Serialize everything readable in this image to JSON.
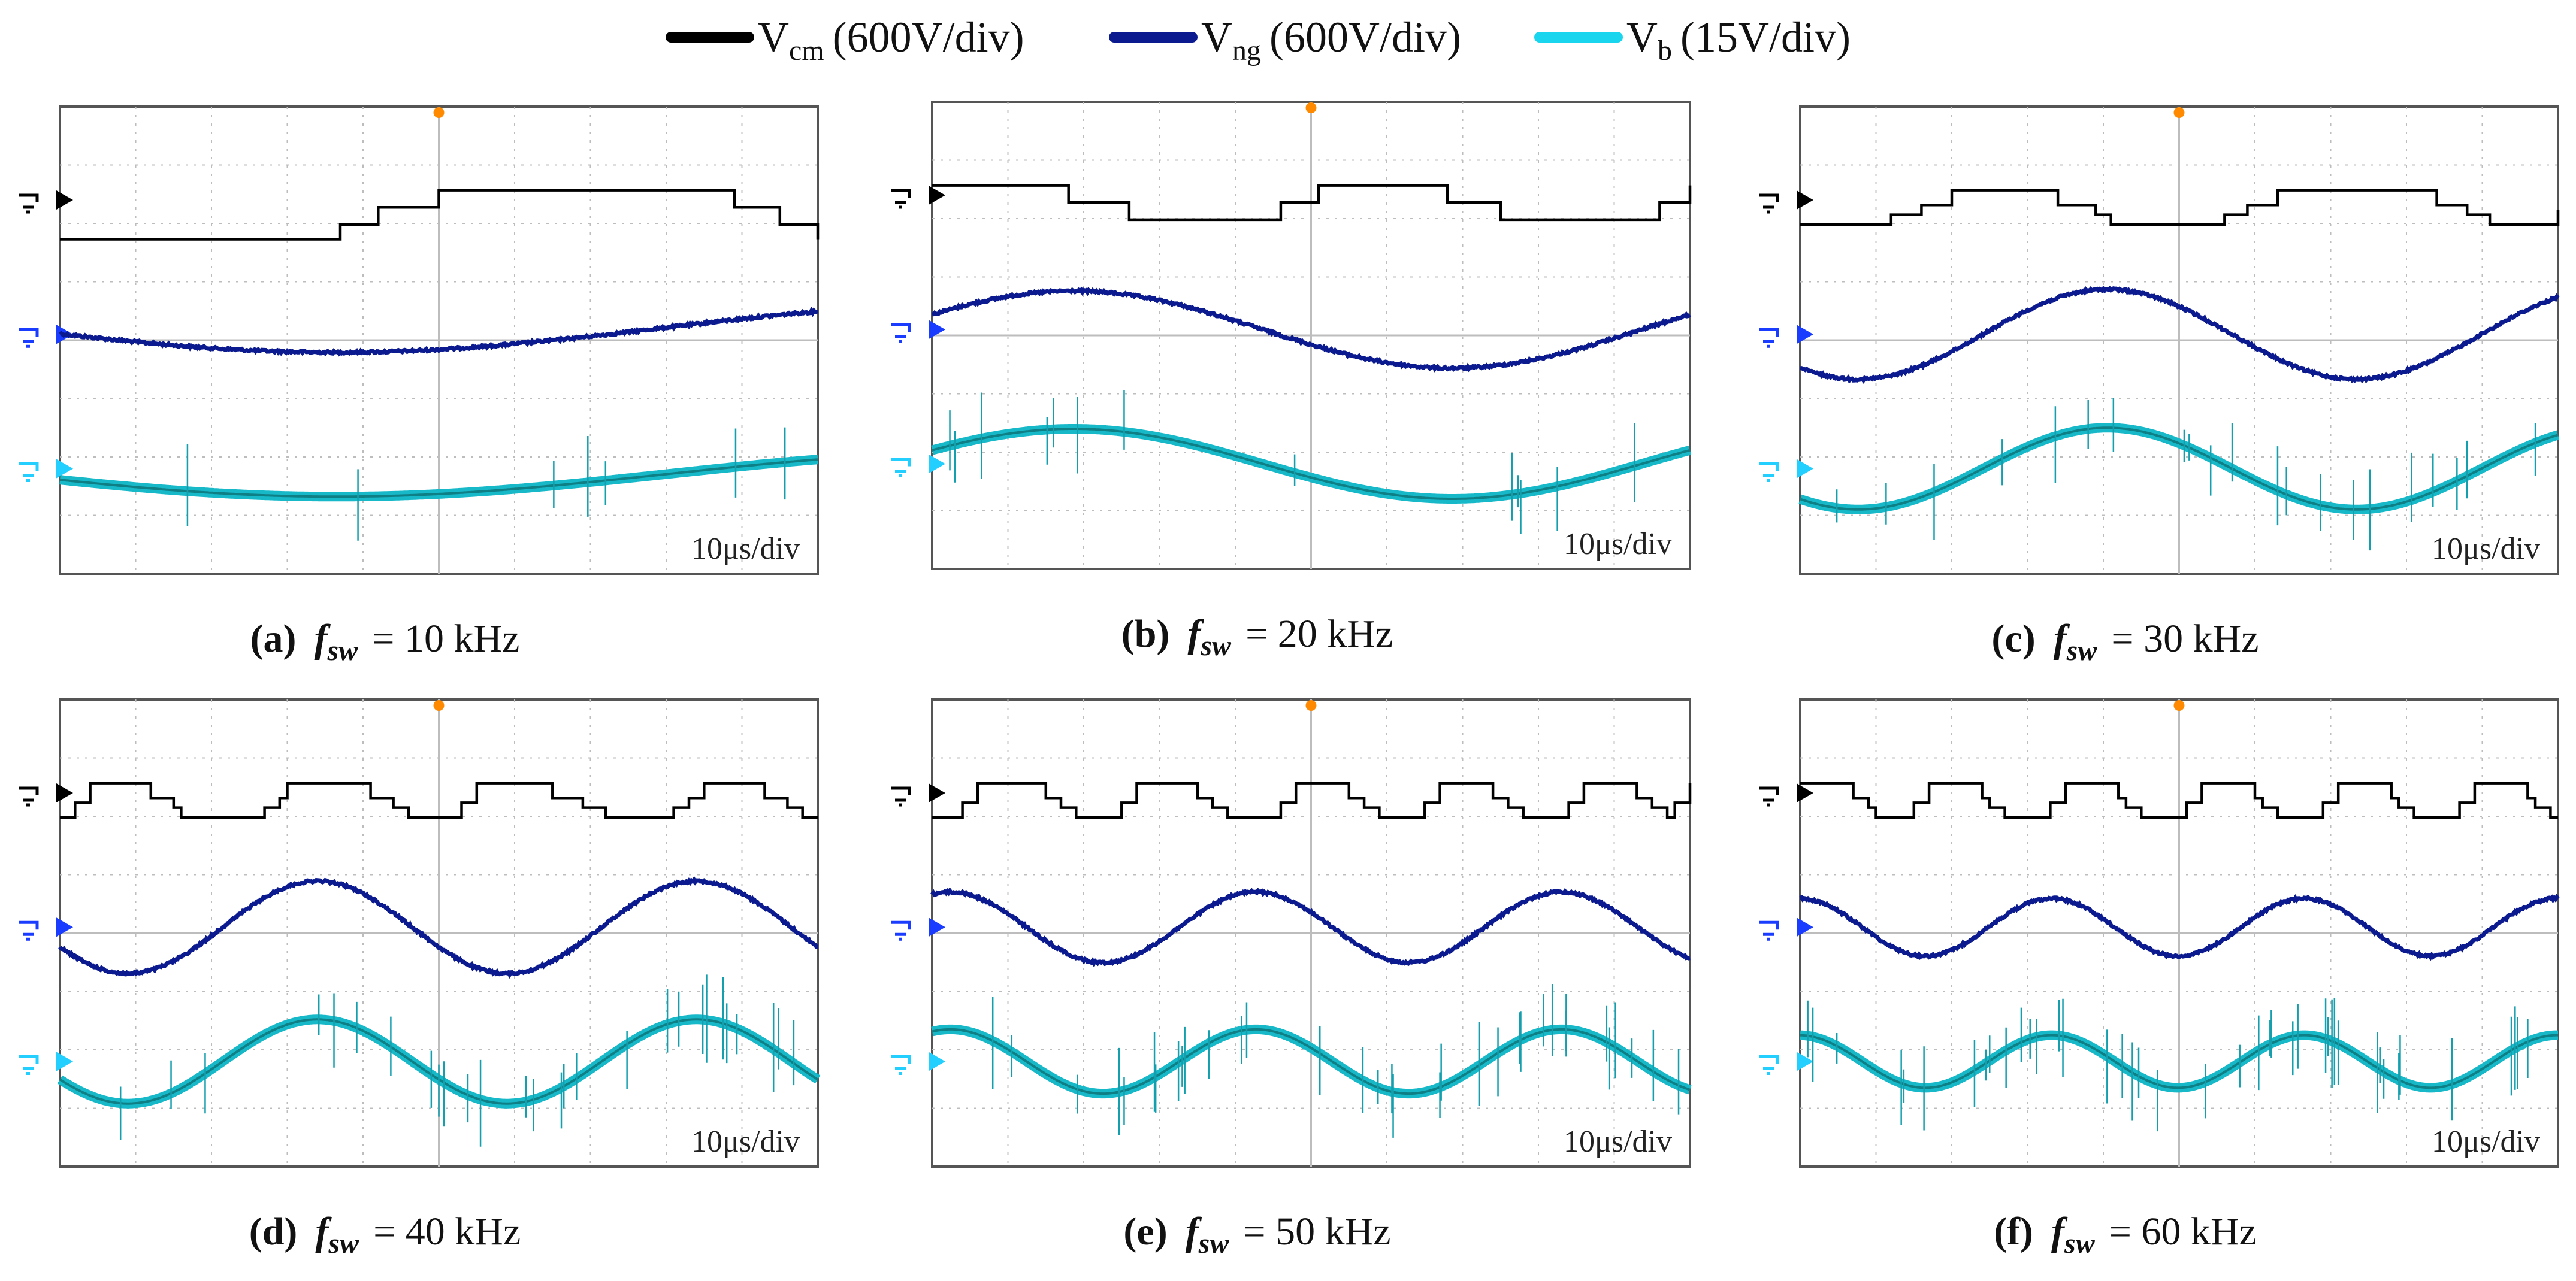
{
  "legend": [
    {
      "symbol": "V",
      "sub": "cm",
      "scale": "(600V/div)",
      "color": "#000000"
    },
    {
      "symbol": "V",
      "sub": "ng",
      "scale": "(600V/div)",
      "color": "#0b1a8f"
    },
    {
      "symbol": "V",
      "sub": "b",
      "scale": "(15V/div)",
      "color": "#19d6ee"
    }
  ],
  "chart_data": [
    {
      "type": "line",
      "label": "(a)",
      "caption_suffix": "= 10 kHz",
      "fsw_khz": 10,
      "timebase": "10μs/div",
      "vcm_steps": [
        [
          0,
          -1.6
        ],
        [
          3.4,
          -1.6
        ],
        [
          3.7,
          -1
        ],
        [
          4.2,
          -0.3
        ],
        [
          5,
          0.4
        ],
        [
          8.6,
          0.4
        ],
        [
          8.9,
          -0.3
        ],
        [
          9.5,
          -1
        ],
        [
          10,
          -1.6
        ]
      ],
      "vng": {
        "offset": 0.1,
        "amp": 0.38,
        "freq": 0.58,
        "phase": -2.9
      },
      "vb_offset": -0.1
    },
    {
      "type": "line",
      "label": "(b)",
      "caption_suffix": "= 20 kHz",
      "fsw_khz": 20,
      "timebase": "10μs/div",
      "vcm_steps": [
        [
          0,
          0.4
        ],
        [
          1.3,
          0.4
        ],
        [
          1.8,
          -0.3
        ],
        [
          2.6,
          -1
        ],
        [
          4.1,
          -1
        ],
        [
          4.6,
          -0.3
        ],
        [
          5.1,
          0.4
        ],
        [
          6.3,
          0.4
        ],
        [
          6.8,
          -0.3
        ],
        [
          7.5,
          -1
        ],
        [
          9.1,
          -1
        ],
        [
          9.6,
          -0.3
        ],
        [
          10,
          0.4
        ]
      ],
      "vng": {
        "offset": 0.0,
        "amp": 0.6,
        "freq": 1.0,
        "phase": 0.4
      },
      "vb_offset": 0.0
    },
    {
      "type": "line",
      "label": "(c)",
      "caption_suffix": "= 30 kHz",
      "fsw_khz": 30,
      "timebase": "10μs/div",
      "vcm_steps": [
        [
          0,
          -1
        ],
        [
          0.9,
          -1
        ],
        [
          1.2,
          -0.6
        ],
        [
          1.6,
          -0.2
        ],
        [
          2,
          0.4
        ],
        [
          3,
          0.4
        ],
        [
          3.4,
          -0.2
        ],
        [
          3.9,
          -0.6
        ],
        [
          4.1,
          -1
        ],
        [
          5.3,
          -1
        ],
        [
          5.6,
          -0.6
        ],
        [
          5.9,
          -0.2
        ],
        [
          6.3,
          0.4
        ],
        [
          8.1,
          0.4
        ],
        [
          8.4,
          -0.2
        ],
        [
          8.8,
          -0.6
        ],
        [
          9.1,
          -1
        ],
        [
          9.8,
          -1
        ],
        [
          10,
          -0.4
        ]
      ],
      "vng": {
        "offset": 0.0,
        "amp": 0.7,
        "freq": 1.52,
        "phase": -2.3
      },
      "vb_offset": 0.0
    },
    {
      "type": "line",
      "label": "(d)",
      "caption_suffix": "= 40 kHz",
      "fsw_khz": 40,
      "timebase": "10μs/div",
      "vcm_steps": [
        [
          0,
          -1
        ],
        [
          0.2,
          -0.4
        ],
        [
          0.4,
          0.4
        ],
        [
          0.9,
          0.4
        ],
        [
          1.2,
          -0.2
        ],
        [
          1.5,
          -0.6
        ],
        [
          1.6,
          -1
        ],
        [
          2.4,
          -1
        ],
        [
          2.7,
          -0.6
        ],
        [
          2.9,
          -0.2
        ],
        [
          3.0,
          0.4
        ],
        [
          3.8,
          0.4
        ],
        [
          4.1,
          -0.2
        ],
        [
          4.4,
          -0.6
        ],
        [
          4.6,
          -1
        ],
        [
          5.2,
          -1
        ],
        [
          5.3,
          -0.4
        ],
        [
          5.5,
          0.4
        ],
        [
          6.3,
          0.4
        ],
        [
          6.5,
          -0.2
        ],
        [
          6.9,
          -0.6
        ],
        [
          7.2,
          -1
        ],
        [
          7.8,
          -1
        ],
        [
          8.1,
          -0.6
        ],
        [
          8.3,
          -0.2
        ],
        [
          8.5,
          0.4
        ],
        [
          9.1,
          0.4
        ],
        [
          9.3,
          -0.2
        ],
        [
          9.6,
          -0.6
        ],
        [
          9.8,
          -1
        ],
        [
          10,
          -1
        ]
      ],
      "vng": {
        "offset": 0.0,
        "amp": 0.72,
        "freq": 2.0,
        "phase": -2.7
      },
      "vb_offset": 0.0
    },
    {
      "type": "line",
      "label": "(e)",
      "caption_suffix": "= 50 kHz",
      "fsw_khz": 50,
      "timebase": "10μs/div",
      "vcm_steps": [
        [
          0,
          -1
        ],
        [
          0.2,
          -1
        ],
        [
          0.4,
          -0.4
        ],
        [
          0.6,
          0.4
        ],
        [
          1.3,
          0.4
        ],
        [
          1.5,
          -0.2
        ],
        [
          1.7,
          -0.6
        ],
        [
          1.9,
          -1
        ],
        [
          2.3,
          -1
        ],
        [
          2.5,
          -0.4
        ],
        [
          2.7,
          0.4
        ],
        [
          3.3,
          0.4
        ],
        [
          3.5,
          -0.2
        ],
        [
          3.7,
          -0.6
        ],
        [
          3.9,
          -1
        ],
        [
          4.4,
          -1
        ],
        [
          4.6,
          -0.4
        ],
        [
          4.8,
          0.4
        ],
        [
          5.3,
          0.4
        ],
        [
          5.5,
          -0.2
        ],
        [
          5.7,
          -0.6
        ],
        [
          5.9,
          -1
        ],
        [
          6.3,
          -1
        ],
        [
          6.5,
          -0.4
        ],
        [
          6.7,
          0.4
        ],
        [
          7.2,
          0.4
        ],
        [
          7.4,
          -0.2
        ],
        [
          7.6,
          -0.6
        ],
        [
          7.8,
          -1
        ],
        [
          8.2,
          -1
        ],
        [
          8.4,
          -0.4
        ],
        [
          8.6,
          0.4
        ],
        [
          9.1,
          0.4
        ],
        [
          9.3,
          -0.2
        ],
        [
          9.5,
          -0.6
        ],
        [
          9.7,
          -1
        ],
        [
          9.8,
          -0.4
        ],
        [
          10,
          0.4
        ]
      ],
      "vng": {
        "offset": 0.0,
        "amp": 0.55,
        "freq": 2.48,
        "phase": 1.2
      },
      "vb_offset": 0.0
    },
    {
      "type": "line",
      "label": "(f)",
      "caption_suffix": "= 60 kHz",
      "fsw_khz": 60,
      "timebase": "10μs/div",
      "vcm_steps": [
        [
          0,
          0.4
        ],
        [
          0.5,
          0.4
        ],
        [
          0.7,
          -0.2
        ],
        [
          0.9,
          -0.6
        ],
        [
          1.0,
          -1
        ],
        [
          1.4,
          -1
        ],
        [
          1.5,
          -0.4
        ],
        [
          1.7,
          0.4
        ],
        [
          2.2,
          0.4
        ],
        [
          2.4,
          -0.2
        ],
        [
          2.5,
          -0.6
        ],
        [
          2.7,
          -1
        ],
        [
          3.2,
          -1
        ],
        [
          3.3,
          -0.4
        ],
        [
          3.5,
          0.4
        ],
        [
          4.0,
          0.4
        ],
        [
          4.2,
          -0.2
        ],
        [
          4.3,
          -0.6
        ],
        [
          4.5,
          -1
        ],
        [
          5.0,
          -1
        ],
        [
          5.1,
          -0.4
        ],
        [
          5.3,
          0.4
        ],
        [
          5.8,
          0.4
        ],
        [
          6.0,
          -0.2
        ],
        [
          6.1,
          -0.6
        ],
        [
          6.3,
          -1
        ],
        [
          6.8,
          -1
        ],
        [
          6.9,
          -0.4
        ],
        [
          7.1,
          0.4
        ],
        [
          7.6,
          0.4
        ],
        [
          7.8,
          -0.2
        ],
        [
          7.9,
          -0.6
        ],
        [
          8.1,
          -1
        ],
        [
          8.6,
          -1
        ],
        [
          8.7,
          -0.4
        ],
        [
          8.9,
          0.4
        ],
        [
          9.4,
          0.4
        ],
        [
          9.6,
          -0.2
        ],
        [
          9.7,
          -0.6
        ],
        [
          9.9,
          -1
        ],
        [
          10,
          -1
        ]
      ],
      "vng": {
        "offset": 0.0,
        "amp": 0.45,
        "freq": 3.0,
        "phase": 1.6
      },
      "vb_offset": 0.0
    }
  ],
  "colors": {
    "vcm": "#000000",
    "vng": "#0b1a8f",
    "vb_fill": "#17b8c8",
    "vb_core": "#0f7f86",
    "grid": "#bdbdbd",
    "trigger": "#ff8a00"
  }
}
